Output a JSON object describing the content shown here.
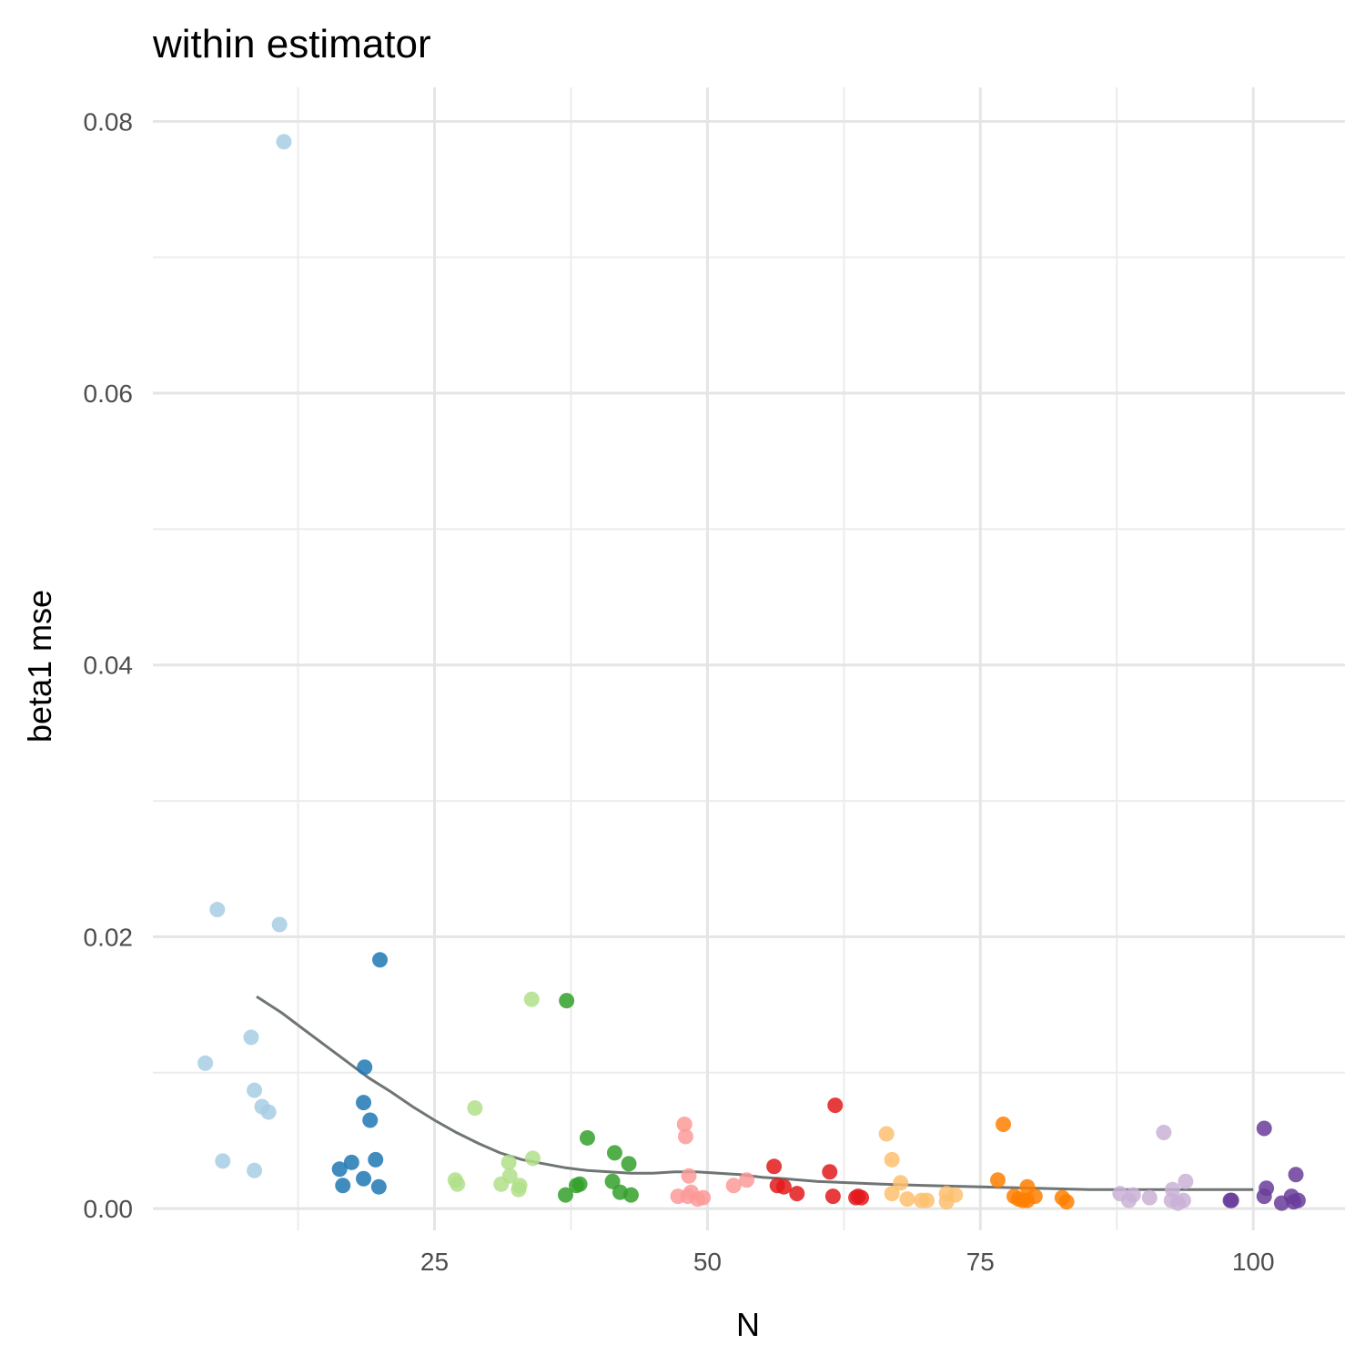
{
  "chart_data": {
    "type": "scatter",
    "title": "within estimator",
    "xlabel": "N",
    "ylabel": "beta1 mse",
    "xlim": [
      -0.8,
      108.4
    ],
    "ylim": [
      -0.0016,
      0.0825
    ],
    "x_ticks": [
      {
        "value": 25,
        "label": "25"
      },
      {
        "value": 50,
        "label": "50"
      },
      {
        "value": 75,
        "label": "75"
      },
      {
        "value": 100,
        "label": "100"
      }
    ],
    "y_ticks": [
      {
        "value": 0.0,
        "label": "0.00"
      },
      {
        "value": 0.02,
        "label": "0.02"
      },
      {
        "value": 0.04,
        "label": "0.04"
      },
      {
        "value": 0.06,
        "label": "0.06"
      },
      {
        "value": 0.08,
        "label": "0.08"
      }
    ],
    "x_minor_ticks": [
      12.5,
      37.5,
      62.5,
      87.5
    ],
    "y_minor_ticks": [
      0.01,
      0.03,
      0.05,
      0.07
    ],
    "grid": true,
    "legend": "none",
    "series": [
      {
        "color": "#a6cee3",
        "points": [
          [
            11.2,
            0.0785
          ],
          [
            5.1,
            0.022
          ],
          [
            10.8,
            0.0209
          ],
          [
            8.2,
            0.0126
          ],
          [
            4.0,
            0.0107
          ],
          [
            8.5,
            0.0087
          ],
          [
            9.2,
            0.0075
          ],
          [
            9.8,
            0.0071
          ],
          [
            5.6,
            0.0035
          ],
          [
            8.5,
            0.0028
          ]
        ]
      },
      {
        "color": "#1f78b4",
        "points": [
          [
            20.0,
            0.0183
          ],
          [
            18.6,
            0.0104
          ],
          [
            18.5,
            0.0078
          ],
          [
            19.1,
            0.0065
          ],
          [
            19.6,
            0.0036
          ],
          [
            17.4,
            0.0034
          ],
          [
            16.3,
            0.0029
          ],
          [
            18.5,
            0.0022
          ],
          [
            16.6,
            0.0017
          ],
          [
            19.9,
            0.0016
          ]
        ]
      },
      {
        "color": "#b2df8a",
        "points": [
          [
            33.9,
            0.0154
          ],
          [
            28.7,
            0.0074
          ],
          [
            34.0,
            0.0037
          ],
          [
            31.8,
            0.0034
          ],
          [
            31.9,
            0.0024
          ],
          [
            26.9,
            0.0021
          ],
          [
            27.1,
            0.0018
          ],
          [
            31.1,
            0.0018
          ],
          [
            32.8,
            0.0017
          ],
          [
            32.7,
            0.0014
          ]
        ]
      },
      {
        "color": "#33a02c",
        "points": [
          [
            37.1,
            0.0153
          ],
          [
            39.0,
            0.0052
          ],
          [
            41.5,
            0.0041
          ],
          [
            42.8,
            0.0033
          ],
          [
            41.3,
            0.002
          ],
          [
            38.3,
            0.0018
          ],
          [
            38.0,
            0.0017
          ],
          [
            42.0,
            0.0012
          ],
          [
            37.0,
            0.001
          ],
          [
            43.0,
            0.001
          ]
        ]
      },
      {
        "color": "#fb9a99",
        "points": [
          [
            47.9,
            0.0062
          ],
          [
            48.0,
            0.0053
          ],
          [
            48.3,
            0.0024
          ],
          [
            53.6,
            0.0021
          ],
          [
            52.4,
            0.0017
          ],
          [
            48.5,
            0.0012
          ],
          [
            47.3,
            0.0009
          ],
          [
            48.2,
            0.0009
          ],
          [
            49.6,
            0.0008
          ],
          [
            49.1,
            0.0007
          ]
        ]
      },
      {
        "color": "#e31a1c",
        "points": [
          [
            61.7,
            0.0076
          ],
          [
            56.1,
            0.0031
          ],
          [
            61.2,
            0.0027
          ],
          [
            56.4,
            0.0017
          ],
          [
            57.0,
            0.0016
          ],
          [
            58.2,
            0.0011
          ],
          [
            61.5,
            0.0009
          ],
          [
            63.8,
            0.0009
          ],
          [
            63.6,
            0.0008
          ],
          [
            64.1,
            0.0008
          ]
        ]
      },
      {
        "color": "#fdbf6f",
        "points": [
          [
            66.4,
            0.0055
          ],
          [
            66.9,
            0.0036
          ],
          [
            67.7,
            0.0019
          ],
          [
            66.9,
            0.0011
          ],
          [
            72.7,
            0.001
          ],
          [
            71.9,
            0.0011
          ],
          [
            68.3,
            0.0007
          ],
          [
            69.6,
            0.0006
          ],
          [
            70.1,
            0.0006
          ],
          [
            71.9,
            0.0005
          ]
        ]
      },
      {
        "color": "#ff7f00",
        "points": [
          [
            77.1,
            0.0062
          ],
          [
            76.6,
            0.0021
          ],
          [
            79.3,
            0.0016
          ],
          [
            78.1,
            0.0009
          ],
          [
            80.0,
            0.0009
          ],
          [
            82.5,
            0.0008
          ],
          [
            78.5,
            0.0007
          ],
          [
            78.9,
            0.0006
          ],
          [
            79.3,
            0.0006
          ],
          [
            82.9,
            0.0005
          ]
        ]
      },
      {
        "color": "#cab2d6",
        "points": [
          [
            91.8,
            0.0056
          ],
          [
            93.8,
            0.002
          ],
          [
            92.6,
            0.0014
          ],
          [
            87.8,
            0.0011
          ],
          [
            89.0,
            0.001
          ],
          [
            90.5,
            0.0008
          ],
          [
            88.6,
            0.0006
          ],
          [
            92.5,
            0.0006
          ],
          [
            93.6,
            0.0006
          ],
          [
            93.1,
            0.0004
          ]
        ]
      },
      {
        "color": "#6a3d9a",
        "points": [
          [
            101.0,
            0.0059
          ],
          [
            103.9,
            0.0025
          ],
          [
            101.2,
            0.0015
          ],
          [
            101.0,
            0.0009
          ],
          [
            103.5,
            0.0009
          ],
          [
            97.9,
            0.0006
          ],
          [
            98.0,
            0.0006
          ],
          [
            104.1,
            0.0006
          ],
          [
            103.7,
            0.0005
          ],
          [
            102.6,
            0.0004
          ]
        ]
      }
    ],
    "trend": {
      "color": "#6e7572",
      "points": [
        [
          8.7,
          0.0156
        ],
        [
          11.0,
          0.0144
        ],
        [
          13.0,
          0.0132
        ],
        [
          15.0,
          0.012
        ],
        [
          17.0,
          0.0108
        ],
        [
          19.0,
          0.0096
        ],
        [
          21.0,
          0.0086
        ],
        [
          23.0,
          0.0075
        ],
        [
          25.0,
          0.0065
        ],
        [
          27.0,
          0.0056
        ],
        [
          29.0,
          0.0048
        ],
        [
          31.0,
          0.0041
        ],
        [
          33.0,
          0.0036
        ],
        [
          35.0,
          0.0033
        ],
        [
          37.0,
          0.003
        ],
        [
          39.0,
          0.0028
        ],
        [
          41.0,
          0.0027
        ],
        [
          43.0,
          0.0026
        ],
        [
          45.0,
          0.0026
        ],
        [
          47.0,
          0.0027
        ],
        [
          49.0,
          0.0027
        ],
        [
          51.0,
          0.0026
        ],
        [
          53.0,
          0.0025
        ],
        [
          55.0,
          0.0023
        ],
        [
          57.0,
          0.0022
        ],
        [
          60.0,
          0.002
        ],
        [
          63.0,
          0.0019
        ],
        [
          66.0,
          0.0018
        ],
        [
          70.0,
          0.0017
        ],
        [
          75.0,
          0.0016
        ],
        [
          80.0,
          0.0015
        ],
        [
          85.0,
          0.0014
        ],
        [
          90.0,
          0.0014
        ],
        [
          95.0,
          0.0014
        ],
        [
          100.0,
          0.0014
        ]
      ]
    }
  }
}
